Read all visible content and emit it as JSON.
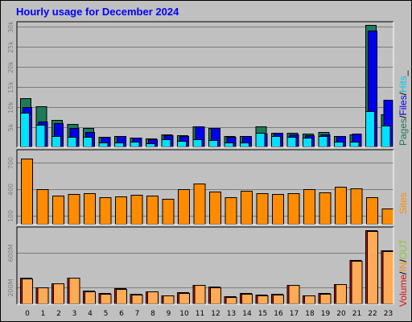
{
  "title": "Hourly usage for December 2024",
  "colors": {
    "background": "#c0c0c0",
    "title": "#0000ff",
    "pages": "#1e7a5a",
    "files": "#0000ee",
    "hits": "#00e0ff",
    "sites": "#ff8c00",
    "volume": "#dd1111",
    "in": "#ffaa55",
    "out": "#88cc22"
  },
  "legend": {
    "top": [
      "Pages",
      "/",
      "Files",
      "/",
      "Hits",
      "_"
    ],
    "middle": [
      "Sites"
    ],
    "bottom": [
      "Volume",
      "/",
      "IN",
      "/",
      "OUT"
    ]
  },
  "chart_data": [
    {
      "type": "bar",
      "name": "hits-files-pages",
      "categories": [
        "0",
        "1",
        "2",
        "3",
        "4",
        "5",
        "6",
        "7",
        "8",
        "9",
        "10",
        "11",
        "12",
        "13",
        "14",
        "15",
        "16",
        "17",
        "18",
        "19",
        "20",
        "21",
        "22",
        "23"
      ],
      "ylim": [
        0,
        30500
      ],
      "yticks": [
        5000,
        10000,
        15000,
        20000,
        25000,
        30000
      ],
      "ytick_labels": [
        "5k",
        "10k",
        "15k",
        "20k",
        "25k",
        "30k"
      ],
      "series": [
        {
          "name": "Pages",
          "values": [
            12200,
            10200,
            6800,
            5800,
            4800,
            2700,
            2900,
            2400,
            2300,
            3300,
            3100,
            5200,
            4900,
            2800,
            2900,
            5200,
            3700,
            3600,
            3500,
            3800,
            2900,
            3300,
            30500,
            8300
          ]
        },
        {
          "name": "Files",
          "values": [
            10000,
            6400,
            6100,
            4900,
            3800,
            2700,
            2900,
            2400,
            2100,
            3000,
            2900,
            5300,
            4900,
            2600,
            2800,
            3400,
            3600,
            3300,
            3100,
            3300,
            2800,
            3400,
            29000,
            11800
          ]
        },
        {
          "name": "Hits",
          "values": [
            8700,
            5600,
            2900,
            2600,
            2600,
            1300,
            1300,
            1400,
            1100,
            2000,
            1700,
            2000,
            1800,
            1300,
            1300,
            3600,
            2900,
            2700,
            2500,
            2800,
            1500,
            1500,
            9000,
            5500
          ]
        }
      ]
    },
    {
      "type": "bar",
      "name": "sites",
      "categories": [
        "0",
        "1",
        "2",
        "3",
        "4",
        "5",
        "6",
        "7",
        "8",
        "9",
        "10",
        "11",
        "12",
        "13",
        "14",
        "15",
        "16",
        "17",
        "18",
        "19",
        "20",
        "21",
        "22",
        "23"
      ],
      "ylim": [
        0,
        810
      ],
      "yticks": [
        100,
        400,
        700
      ],
      "ytick_labels": [
        "100",
        "400",
        "700"
      ],
      "series": [
        {
          "name": "Sites",
          "values": [
            750,
            400,
            325,
            350,
            355,
            310,
            318,
            340,
            330,
            295,
            400,
            460,
            370,
            310,
            380,
            355,
            345,
            355,
            400,
            360,
            430,
            405,
            310,
            185
          ]
        }
      ]
    },
    {
      "type": "bar",
      "name": "volume",
      "categories": [
        "0",
        "1",
        "2",
        "3",
        "4",
        "5",
        "6",
        "7",
        "8",
        "9",
        "10",
        "11",
        "12",
        "13",
        "14",
        "15",
        "16",
        "17",
        "18",
        "19",
        "20",
        "21",
        "22",
        "23"
      ],
      "ylim": [
        0,
        860
      ],
      "yticks": [
        200,
        600
      ],
      "ytick_labels": [
        "200M",
        "600M"
      ],
      "series": [
        {
          "name": "Volume",
          "values": [
            310,
            200,
            245,
            310,
            160,
            130,
            185,
            120,
            150,
            105,
            140,
            225,
            205,
            90,
            130,
            110,
            120,
            225,
            105,
            130,
            235,
            510,
            860,
            625
          ]
        },
        {
          "name": "IN",
          "values": [
            300,
            195,
            240,
            305,
            150,
            125,
            180,
            115,
            145,
            100,
            135,
            220,
            200,
            85,
            125,
            105,
            115,
            220,
            100,
            125,
            230,
            505,
            850,
            620
          ]
        }
      ]
    }
  ]
}
